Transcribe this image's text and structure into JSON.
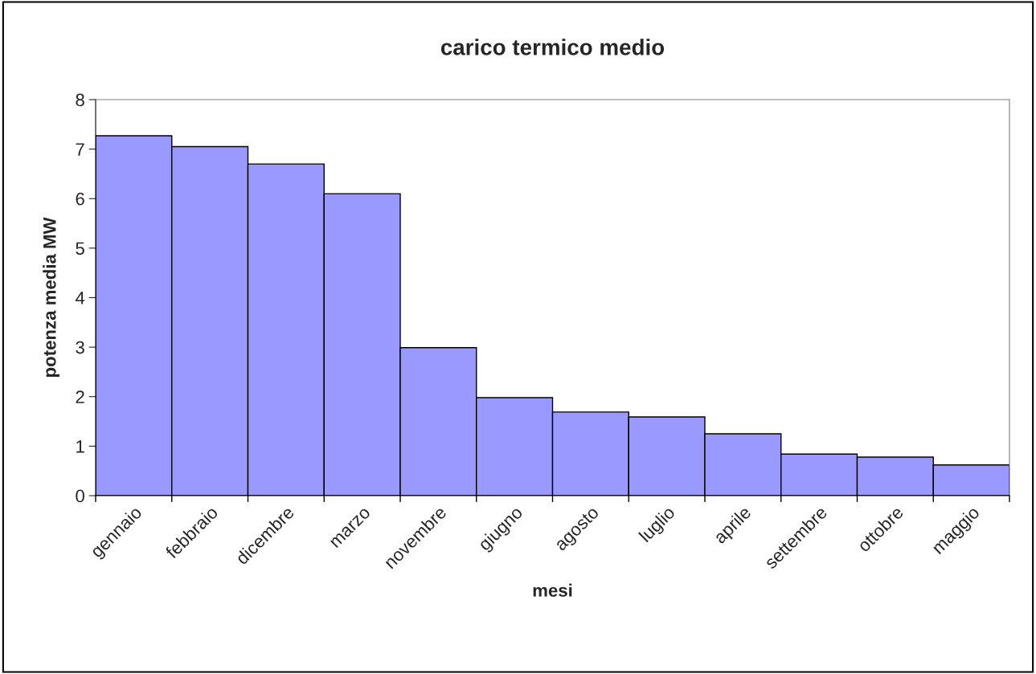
{
  "chart_data": {
    "type": "bar",
    "title": "carico termico medio",
    "xlabel": "mesi",
    "ylabel": "potenza media MW",
    "categories": [
      "gennaio",
      "febbraio",
      "dicembre",
      "marzo",
      "novembre",
      "giugno",
      "agosto",
      "luglio",
      "aprile",
      "settembre",
      "ottobre",
      "maggio"
    ],
    "values": [
      7.27,
      7.05,
      6.7,
      6.1,
      2.99,
      1.98,
      1.69,
      1.59,
      1.25,
      0.84,
      0.78,
      0.62
    ],
    "color": "#9999ff",
    "ylim": [
      0,
      8
    ],
    "yticks": [
      0,
      1,
      2,
      3,
      4,
      5,
      6,
      7,
      8
    ],
    "grid": false,
    "legend": false
  }
}
